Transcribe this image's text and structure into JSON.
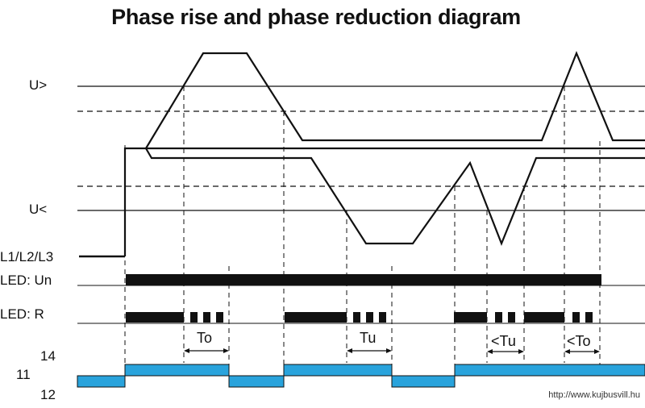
{
  "title": "Phase rise and phase reduction diagram",
  "labels": {
    "u_over": "U>",
    "u_under": "U<",
    "phases": "L1/L2/L3",
    "led_un": "LED: Un",
    "led_r": "LED: R",
    "contact_14": "14",
    "contact_11": "11",
    "contact_12": "12"
  },
  "intervals": {
    "to": "To",
    "tu": "Tu",
    "lt_tu": "<Tu",
    "lt_to": "<To"
  },
  "watermark": "http://www.kujbusvill.hu",
  "colors": {
    "relay_fill": "#29a3dc",
    "line": "#111111"
  }
}
